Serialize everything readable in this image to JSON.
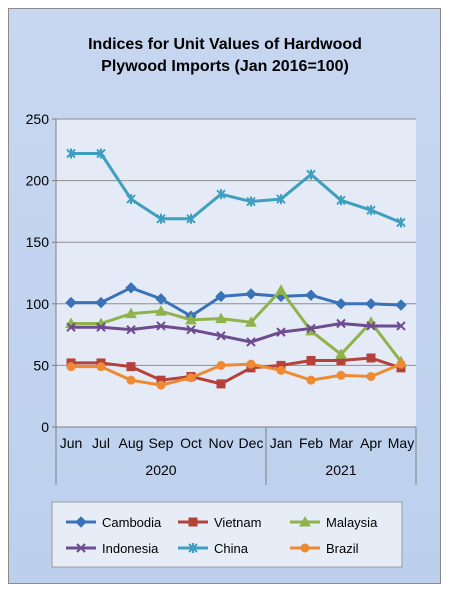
{
  "chart_data": {
    "type": "line",
    "title": [
      "Indices for Unit Values of Hardwood",
      "Plywood Imports (Jan 2016=100)"
    ],
    "categories": [
      "Jun",
      "Jul",
      "Aug",
      "Sep",
      "Oct",
      "Nov",
      "Dec",
      "Jan",
      "Feb",
      "Mar",
      "Apr",
      "May"
    ],
    "year_groups": [
      {
        "label": "2020",
        "start": 0,
        "end": 6
      },
      {
        "label": "2021",
        "start": 7,
        "end": 11
      }
    ],
    "ylim": [
      0,
      250
    ],
    "yticks": [
      0,
      50,
      100,
      150,
      200,
      250
    ],
    "grid": true,
    "legend_position": "bottom",
    "series": [
      {
        "name": "Cambodia",
        "color": "#3a72b8",
        "marker": "diamond",
        "values": [
          101,
          101,
          113,
          104,
          90,
          106,
          108,
          106,
          107,
          100,
          100,
          99
        ]
      },
      {
        "name": "Vietnam",
        "color": "#b5413a",
        "marker": "square",
        "values": [
          52,
          52,
          49,
          38,
          41,
          35,
          48,
          50,
          54,
          54,
          56,
          48
        ]
      },
      {
        "name": "Malaysia",
        "color": "#8fb34a",
        "marker": "triangle",
        "values": [
          84,
          84,
          92,
          94,
          87,
          88,
          85,
          111,
          78,
          59,
          85,
          53
        ]
      },
      {
        "name": "Indonesia",
        "color": "#6e4a8f",
        "marker": "x",
        "values": [
          81,
          81,
          79,
          82,
          79,
          74,
          69,
          77,
          80,
          84,
          82,
          82
        ]
      },
      {
        "name": "China",
        "color": "#3e9fc0",
        "marker": "asterisk",
        "values": [
          222,
          222,
          185,
          169,
          169,
          189,
          183,
          185,
          205,
          184,
          176,
          166
        ]
      },
      {
        "name": "Brazil",
        "color": "#ee8a34",
        "marker": "circle",
        "values": [
          49,
          49,
          38,
          34,
          40,
          50,
          51,
          46,
          38,
          42,
          41,
          51
        ]
      }
    ]
  }
}
